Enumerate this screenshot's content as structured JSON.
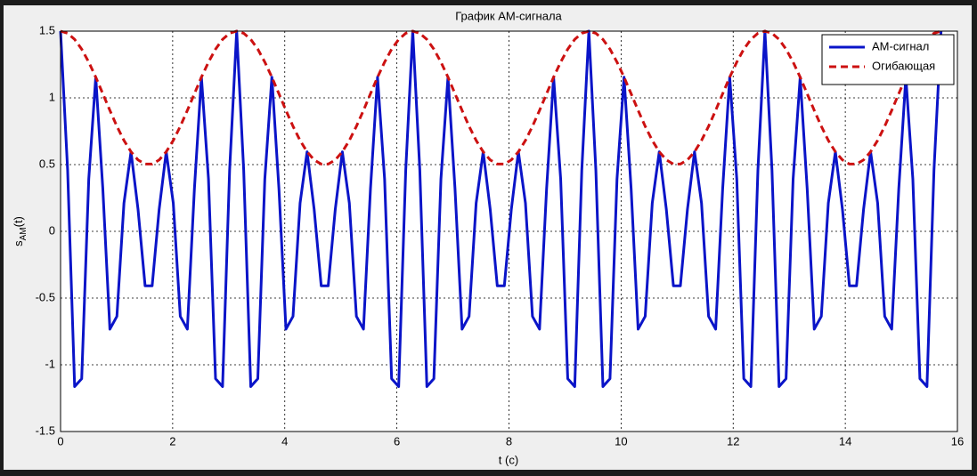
{
  "chart_data": {
    "type": "line",
    "title": "График АМ-сигнала",
    "xlabel": "t (c)",
    "ylabel": [
      "s",
      "AM",
      "(t)"
    ],
    "x": [
      0,
      0.126,
      0.251,
      0.377,
      0.503,
      0.628,
      0.754,
      0.88,
      1.005,
      1.131,
      1.257,
      1.382,
      1.508,
      1.634,
      1.759,
      1.885,
      2.011,
      2.136,
      2.262,
      2.388,
      2.513,
      2.639,
      2.765,
      2.89,
      3.016,
      3.142,
      3.267,
      3.393,
      3.519,
      3.644,
      3.77,
      3.896,
      4.021,
      4.147,
      4.273,
      4.398,
      4.524,
      4.65,
      4.775,
      4.901,
      5.027,
      5.152,
      5.278,
      5.404,
      5.529,
      5.655,
      5.781,
      5.906,
      6.032,
      6.158,
      6.283,
      6.409,
      6.535,
      6.66,
      6.786,
      6.912,
      7.037,
      7.163,
      7.288,
      7.414,
      7.54,
      7.665,
      7.791,
      7.917,
      8.042,
      8.168,
      8.294,
      8.419,
      8.545,
      8.671,
      8.796,
      8.922,
      9.048,
      9.173,
      9.299,
      9.425,
      9.55,
      9.676,
      9.802,
      9.927,
      10.053,
      10.179,
      10.304,
      10.43,
      10.556,
      10.681,
      10.807,
      10.933,
      11.058,
      11.184,
      11.31,
      11.435,
      11.561,
      11.687,
      11.812,
      11.938,
      12.064,
      12.189,
      12.315,
      12.441,
      12.566,
      12.692,
      12.818,
      12.943,
      13.069,
      13.195,
      13.32,
      13.446,
      13.572,
      13.697,
      13.823,
      13.949,
      14.074,
      14.2,
      14.326,
      14.451,
      14.577,
      14.703,
      14.828,
      14.954,
      15.08,
      15.205,
      15.331,
      15.457,
      15.582,
      15.708
    ],
    "series": [
      {
        "name": "АМ-сигнал",
        "color": "#0a14c8",
        "dashed": false,
        "values": [
          1.5,
          0.459,
          -1.163,
          -1.104,
          0.392,
          1.155,
          0.319,
          -0.733,
          -0.637,
          0.211,
          0.596,
          0.165,
          -0.408,
          -0.408,
          0.165,
          0.596,
          0.211,
          -0.637,
          -0.733,
          0.319,
          1.155,
          0.392,
          -1.104,
          -1.163,
          0.459,
          1.5,
          0.459,
          -1.163,
          -1.104,
          0.392,
          1.155,
          0.319,
          -0.733,
          -0.637,
          0.211,
          0.596,
          0.165,
          -0.408,
          -0.408,
          0.165,
          0.596,
          0.211,
          -0.637,
          -0.733,
          0.319,
          1.155,
          0.392,
          -1.104,
          -1.163,
          0.459,
          1.5,
          0.459,
          -1.163,
          -1.104,
          0.392,
          1.155,
          0.319,
          -0.733,
          -0.637,
          0.211,
          0.596,
          0.165,
          -0.408,
          -0.408,
          0.165,
          0.596,
          0.211,
          -0.637,
          -0.733,
          0.319,
          1.155,
          0.392,
          -1.104,
          -1.163,
          0.459,
          1.5,
          0.459,
          -1.163,
          -1.104,
          0.392,
          1.155,
          0.319,
          -0.733,
          -0.637,
          0.211,
          0.596,
          0.165,
          -0.408,
          -0.408,
          0.165,
          0.596,
          0.211,
          -0.637,
          -0.733,
          0.319,
          1.155,
          0.392,
          -1.104,
          -1.163,
          0.459,
          1.5,
          0.459,
          -1.163,
          -1.104,
          0.392,
          1.155,
          0.319,
          -0.733,
          -0.637,
          0.211,
          0.596,
          0.165,
          -0.408,
          -0.408,
          0.165,
          0.596,
          0.211,
          -0.637,
          -0.733,
          0.319,
          1.155,
          0.392,
          -1.104,
          -1.163,
          0.459,
          1.5
        ]
      },
      {
        "name": "Огибающая",
        "color": "#cc1111",
        "dashed": true,
        "values": [
          1.5,
          1.484,
          1.438,
          1.365,
          1.268,
          1.155,
          1.031,
          0.906,
          0.787,
          0.681,
          0.596,
          0.535,
          0.504,
          0.504,
          0.535,
          0.596,
          0.681,
          0.787,
          0.906,
          1.031,
          1.155,
          1.268,
          1.365,
          1.438,
          1.484,
          1.5,
          1.484,
          1.438,
          1.365,
          1.268,
          1.155,
          1.031,
          0.906,
          0.787,
          0.681,
          0.596,
          0.535,
          0.504,
          0.504,
          0.535,
          0.596,
          0.681,
          0.787,
          0.906,
          1.031,
          1.155,
          1.268,
          1.365,
          1.438,
          1.484,
          1.5,
          1.484,
          1.438,
          1.365,
          1.268,
          1.155,
          1.031,
          0.906,
          0.787,
          0.681,
          0.596,
          0.535,
          0.504,
          0.504,
          0.535,
          0.596,
          0.681,
          0.787,
          0.906,
          1.031,
          1.155,
          1.268,
          1.365,
          1.438,
          1.484,
          1.5,
          1.484,
          1.438,
          1.365,
          1.268,
          1.155,
          1.031,
          0.906,
          0.787,
          0.681,
          0.596,
          0.535,
          0.504,
          0.504,
          0.535,
          0.596,
          0.681,
          0.787,
          0.906,
          1.031,
          1.155,
          1.268,
          1.365,
          1.438,
          1.484,
          1.5,
          1.484,
          1.438,
          1.365,
          1.268,
          1.155,
          1.031,
          0.906,
          0.787,
          0.681,
          0.596,
          0.535,
          0.504,
          0.504,
          0.535,
          0.596,
          0.681,
          0.787,
          0.906,
          1.031,
          1.155,
          1.268,
          1.365,
          1.438,
          1.484,
          1.5
        ]
      }
    ],
    "xlim": [
      0,
      16
    ],
    "xticks": [
      0,
      2,
      4,
      6,
      8,
      10,
      12,
      14,
      16
    ],
    "ylim": [
      -1.5,
      1.5
    ],
    "yticks": [
      -1.5,
      -1,
      -0.5,
      0,
      0.5,
      1,
      1.5
    ],
    "grid": true,
    "legend": "northeast"
  }
}
